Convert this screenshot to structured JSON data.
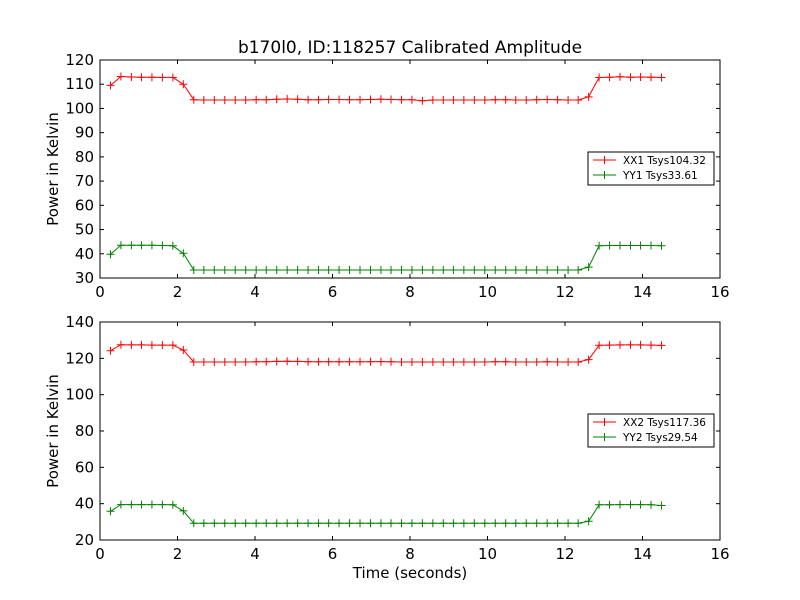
{
  "figure": {
    "title": "b170l0, ID:118257 Calibrated Amplitude",
    "xlabel": "Time (seconds)"
  },
  "chart_data": [
    {
      "type": "line",
      "title": "b170l0, ID:118257 Calibrated Amplitude",
      "xlabel": "",
      "ylabel": "Power in Kelvin",
      "xlim": [
        0,
        16
      ],
      "ylim": [
        30,
        120
      ],
      "xticks": [
        0,
        2,
        4,
        6,
        8,
        10,
        12,
        14,
        16
      ],
      "yticks": [
        30,
        40,
        50,
        60,
        70,
        80,
        90,
        100,
        110,
        120
      ],
      "grid": false,
      "legend": "center-right",
      "x": [
        0.27,
        0.54,
        0.81,
        1.07,
        1.34,
        1.61,
        1.88,
        2.15,
        2.42,
        2.68,
        2.95,
        3.22,
        3.49,
        3.76,
        4.03,
        4.29,
        4.56,
        4.83,
        5.1,
        5.37,
        5.64,
        5.9,
        6.17,
        6.44,
        6.71,
        6.98,
        7.25,
        7.51,
        7.78,
        8.05,
        8.32,
        8.59,
        8.86,
        9.12,
        9.39,
        9.66,
        9.93,
        10.2,
        10.47,
        10.73,
        11.0,
        11.27,
        11.54,
        11.81,
        12.08,
        12.34,
        12.61,
        12.88,
        13.15,
        13.42,
        13.69,
        13.95,
        14.22,
        14.49
      ],
      "series": [
        {
          "name": "XX1 Tsys104.32",
          "color": "#ff0000",
          "values": [
            109.5,
            113.2,
            113.0,
            112.9,
            112.9,
            112.8,
            112.8,
            110.0,
            103.6,
            103.5,
            103.5,
            103.5,
            103.5,
            103.5,
            103.6,
            103.6,
            103.8,
            103.9,
            103.8,
            103.6,
            103.6,
            103.7,
            103.7,
            103.6,
            103.6,
            103.7,
            103.8,
            103.7,
            103.6,
            103.6,
            103.2,
            103.5,
            103.5,
            103.5,
            103.5,
            103.5,
            103.5,
            103.6,
            103.6,
            103.5,
            103.5,
            103.6,
            103.7,
            103.6,
            103.5,
            103.5,
            104.8,
            112.8,
            112.9,
            113.1,
            112.9,
            113.0,
            112.9,
            112.8
          ]
        },
        {
          "name": "YY1 Tsys33.61",
          "color": "#008000",
          "values": [
            39.8,
            43.5,
            43.5,
            43.5,
            43.5,
            43.4,
            43.3,
            40.2,
            33.3,
            33.3,
            33.3,
            33.3,
            33.3,
            33.3,
            33.3,
            33.3,
            33.3,
            33.3,
            33.3,
            33.3,
            33.3,
            33.3,
            33.3,
            33.3,
            33.3,
            33.3,
            33.3,
            33.3,
            33.3,
            33.3,
            33.3,
            33.3,
            33.3,
            33.3,
            33.3,
            33.3,
            33.3,
            33.3,
            33.3,
            33.3,
            33.3,
            33.3,
            33.3,
            33.3,
            33.3,
            33.3,
            34.5,
            43.3,
            43.4,
            43.4,
            43.4,
            43.4,
            43.4,
            43.3
          ]
        }
      ]
    },
    {
      "type": "line",
      "title": "",
      "xlabel": "Time (seconds)",
      "ylabel": "Power in Kelvin",
      "xlim": [
        0,
        16
      ],
      "ylim": [
        20,
        140
      ],
      "xticks": [
        0,
        2,
        4,
        6,
        8,
        10,
        12,
        14,
        16
      ],
      "yticks": [
        20,
        40,
        60,
        80,
        100,
        120,
        140
      ],
      "grid": false,
      "legend": "center-right",
      "x": [
        0.27,
        0.54,
        0.81,
        1.07,
        1.34,
        1.61,
        1.88,
        2.15,
        2.42,
        2.68,
        2.95,
        3.22,
        3.49,
        3.76,
        4.03,
        4.29,
        4.56,
        4.83,
        5.1,
        5.37,
        5.64,
        5.9,
        6.17,
        6.44,
        6.71,
        6.98,
        7.25,
        7.51,
        7.78,
        8.05,
        8.32,
        8.59,
        8.86,
        9.12,
        9.39,
        9.66,
        9.93,
        10.2,
        10.47,
        10.73,
        11.0,
        11.27,
        11.54,
        11.81,
        12.08,
        12.34,
        12.61,
        12.88,
        13.15,
        13.42,
        13.69,
        13.95,
        14.22,
        14.49
      ],
      "series": [
        {
          "name": "XX2 Tsys117.36",
          "color": "#ff0000",
          "values": [
            124.2,
            127.5,
            127.4,
            127.4,
            127.3,
            127.3,
            127.3,
            124.6,
            118.0,
            118.0,
            118.0,
            118.0,
            118.0,
            118.0,
            118.1,
            118.1,
            118.3,
            118.4,
            118.3,
            118.1,
            118.1,
            118.1,
            118.1,
            118.1,
            118.1,
            118.1,
            118.2,
            118.1,
            118.0,
            118.0,
            118.0,
            118.0,
            118.0,
            118.0,
            118.0,
            118.0,
            118.0,
            118.1,
            118.1,
            118.0,
            118.0,
            118.0,
            118.1,
            118.0,
            118.0,
            118.0,
            119.3,
            127.2,
            127.3,
            127.4,
            127.4,
            127.4,
            127.3,
            127.1
          ]
        },
        {
          "name": "YY2 Tsys29.54",
          "color": "#008000",
          "values": [
            35.8,
            39.5,
            39.5,
            39.5,
            39.5,
            39.5,
            39.4,
            36.0,
            29.2,
            29.2,
            29.2,
            29.2,
            29.2,
            29.2,
            29.2,
            29.2,
            29.2,
            29.2,
            29.2,
            29.2,
            29.2,
            29.2,
            29.2,
            29.2,
            29.2,
            29.2,
            29.2,
            29.2,
            29.2,
            29.2,
            29.2,
            29.2,
            29.2,
            29.2,
            29.2,
            29.2,
            29.2,
            29.2,
            29.2,
            29.2,
            29.2,
            29.2,
            29.2,
            29.2,
            29.2,
            29.2,
            30.3,
            39.4,
            39.4,
            39.5,
            39.5,
            39.5,
            39.4,
            39.0
          ]
        }
      ]
    }
  ]
}
